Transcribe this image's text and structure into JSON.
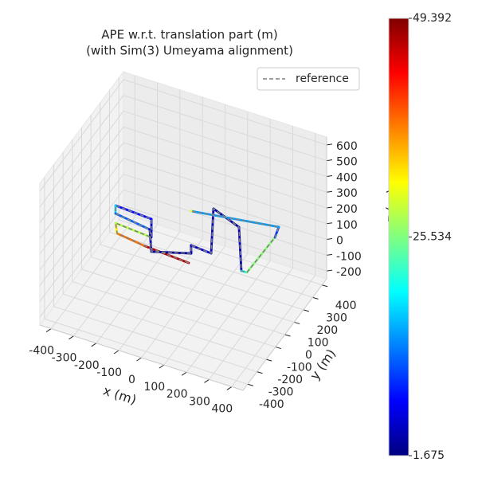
{
  "chart_data": {
    "type": "line3d",
    "title": [
      "APE w.r.t. translation part (m)",
      "(with Sim(3) Umeyama alignment)"
    ],
    "xlabel": "x (m)",
    "ylabel": "y (m)",
    "zlabel": "z (m)",
    "xlim": [
      -450,
      450
    ],
    "ylim": [
      -450,
      450
    ],
    "zlim": [
      -250,
      650
    ],
    "xticks": [
      -400,
      -300,
      -200,
      -100,
      0,
      100,
      200,
      300,
      400
    ],
    "yticks": [
      -400,
      -300,
      -200,
      -100,
      0,
      100,
      200,
      300,
      400
    ],
    "zticks": [
      -200,
      -100,
      0,
      100,
      200,
      300,
      400,
      500,
      600
    ],
    "grid": true,
    "legend": "upper right",
    "reference": {
      "name": "reference",
      "color": "#808080"
    },
    "x": [
      42,
      -167,
      -293,
      -326,
      -160,
      -209,
      -373,
      -352,
      -187,
      -122,
      25,
      3,
      96,
      -15,
      125,
      251,
      275,
      281,
      267,
      -88
    ],
    "y": [
      -42,
      -23,
      0,
      64,
      46,
      165,
      178,
      126,
      94,
      -47,
      25,
      77,
      67,
      362,
      296,
      16,
      18,
      304,
      380,
      300
    ],
    "z": [
      50,
      50,
      50,
      50,
      50,
      50,
      50,
      50,
      50,
      50,
      50,
      50,
      50,
      50,
      50,
      50,
      50,
      50,
      50,
      50
    ],
    "errors": [
      47,
      38,
      32,
      28,
      5,
      8,
      18,
      12,
      4,
      3,
      4,
      5,
      4,
      3,
      4,
      20,
      26,
      10,
      15,
      30
    ],
    "colorbar": {
      "cmap": "jet",
      "clim": [
        1.675,
        49.392
      ],
      "ticks": [
        1.675,
        25.534,
        49.392
      ]
    }
  }
}
